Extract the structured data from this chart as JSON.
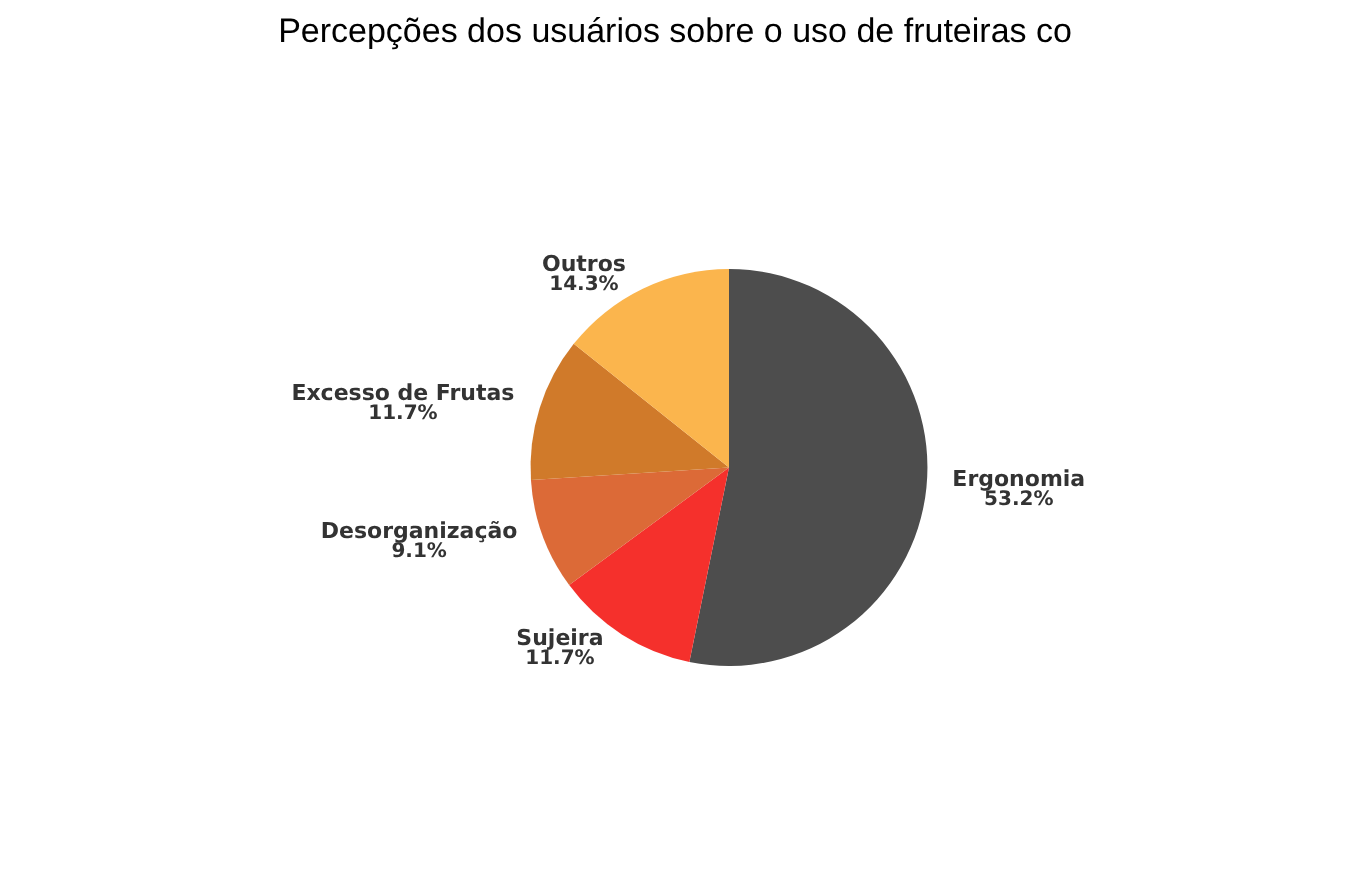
{
  "chart_data": {
    "type": "pie",
    "title": "Percepções dos usuários sobre o uso de fruteiras co",
    "categories": [
      "Ergonomia",
      "Sujeira",
      "Desorganização",
      "Excesso de Frutas",
      "Outros"
    ],
    "values": [
      53.2,
      11.7,
      9.1,
      11.7,
      14.3
    ],
    "value_labels": [
      "53.2%",
      "11.7%",
      "9.1%",
      "11.7%",
      "14.3%"
    ],
    "colors": [
      "#4d4d4d",
      "#f5302c",
      "#dc6a37",
      "#d07a2a",
      "#fbb54d"
    ],
    "legend": false
  }
}
